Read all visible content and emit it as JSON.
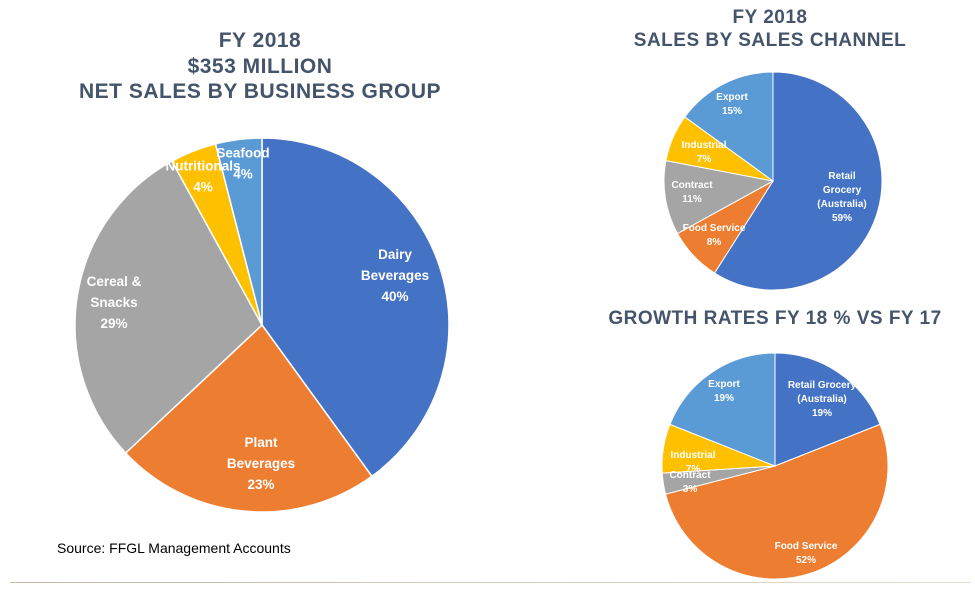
{
  "chart_data": [
    {
      "type": "pie",
      "title": [
        "FY 2018",
        "$353 MILLION",
        "NET SALES BY BUSINESS GROUP"
      ],
      "slices": [
        {
          "label": [
            "Dairy",
            "Beverages"
          ],
          "pct_label": "40%",
          "value": 40,
          "color": "#4472c4"
        },
        {
          "label": [
            "Plant",
            "Beverages"
          ],
          "pct_label": "23%",
          "value": 23,
          "color": "#ed7d31"
        },
        {
          "label": [
            "Cereal &",
            "Snacks"
          ],
          "pct_label": "29%",
          "value": 29,
          "color": "#a5a5a5"
        },
        {
          "label": [
            "Nutritionals"
          ],
          "pct_label": "4%",
          "value": 4,
          "color": "#ffc000"
        },
        {
          "label": [
            "Seafood"
          ],
          "pct_label": "4%",
          "value": 4,
          "color": "#5b9bd5"
        }
      ]
    },
    {
      "type": "pie",
      "title": [
        "FY 2018",
        "SALES BY SALES CHANNEL"
      ],
      "slices": [
        {
          "label": [
            "Retail",
            "Grocery",
            "(Australia)"
          ],
          "pct_label": "59%",
          "value": 59,
          "color": "#4472c4"
        },
        {
          "label": [
            "Food Service"
          ],
          "pct_label": "8%",
          "value": 8,
          "color": "#ed7d31"
        },
        {
          "label": [
            "Contract"
          ],
          "pct_label": "11%",
          "value": 11,
          "color": "#a5a5a5"
        },
        {
          "label": [
            "Industrial"
          ],
          "pct_label": "7%",
          "value": 7,
          "color": "#ffc000"
        },
        {
          "label": [
            "Export"
          ],
          "pct_label": "15%",
          "value": 15,
          "color": "#5b9bd5"
        }
      ]
    },
    {
      "type": "pie",
      "title": [
        "GROWTH RATES FY 18 % VS FY 17"
      ],
      "slices": [
        {
          "label": [
            "Retail Grocery",
            "(Australia)"
          ],
          "pct_label": "19%",
          "value": 19,
          "color": "#4472c4"
        },
        {
          "label": [
            "Food Service"
          ],
          "pct_label": "52%",
          "value": 52,
          "color": "#ed7d31"
        },
        {
          "label": [
            "Contract"
          ],
          "pct_label": "3%",
          "value": 3,
          "color": "#a5a5a5"
        },
        {
          "label": [
            "Industrial"
          ],
          "pct_label": "7%",
          "value": 7,
          "color": "#ffc000"
        },
        {
          "label": [
            "Export"
          ],
          "pct_label": "19%",
          "value": 19,
          "color": "#5b9bd5"
        }
      ]
    }
  ],
  "source": "Source: FFGL Management Accounts"
}
